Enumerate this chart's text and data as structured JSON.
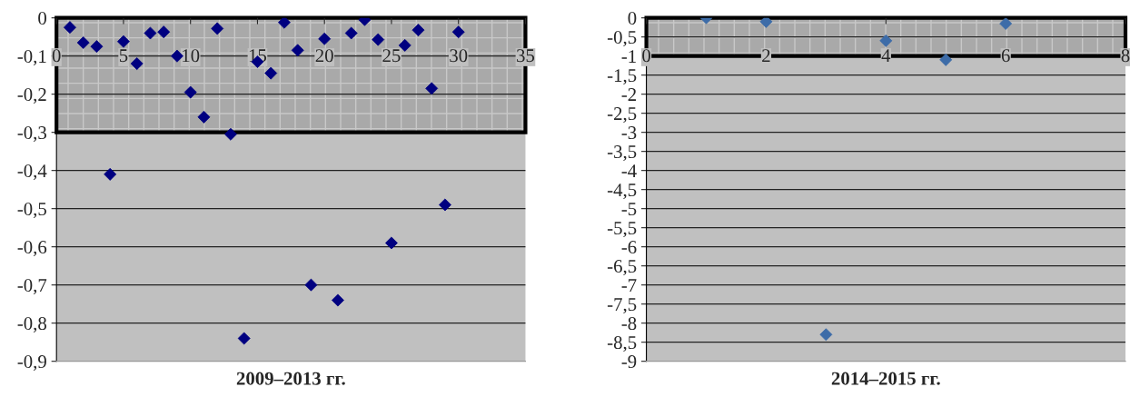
{
  "chart_data": [
    {
      "type": "scatter",
      "title": "2009–2013 гг.",
      "marker": "diamond",
      "grid": "y",
      "x": [
        1,
        2,
        3,
        4,
        5,
        6,
        7,
        8,
        9,
        10,
        11,
        12,
        13,
        14,
        15,
        16,
        17,
        18,
        19,
        20,
        21,
        22,
        23,
        24,
        25,
        26,
        27,
        28,
        29,
        30
      ],
      "series": [
        {
          "color": "#000080",
          "values": [
            -0.025,
            -0.065,
            -0.075,
            -0.41,
            -0.062,
            -0.12,
            -0.04,
            -0.037,
            -0.1,
            -0.195,
            -0.26,
            -0.028,
            -0.305,
            -0.84,
            -0.115,
            -0.145,
            -0.012,
            -0.085,
            -0.7,
            -0.055,
            -0.74,
            -0.04,
            -0.005,
            -0.057,
            -0.59,
            -0.072,
            -0.032,
            -0.185,
            -0.49,
            -0.037
          ]
        }
      ],
      "xlim": [
        0,
        35
      ],
      "xticks": [
        0,
        5,
        10,
        15,
        20,
        25,
        30,
        35
      ],
      "ylim": [
        -0.9,
        0
      ],
      "yticks": [
        0,
        {
          "value": -0.1,
          "label": "-0,1"
        },
        {
          "value": -0.2,
          "label": "-0,2"
        },
        {
          "value": -0.3,
          "label": "-0,3"
        },
        {
          "value": -0.4,
          "label": "-0,4"
        },
        {
          "value": -0.5,
          "label": "-0,5"
        },
        {
          "value": -0.6,
          "label": "-0,6"
        },
        {
          "value": -0.7,
          "label": "-0,7"
        },
        {
          "value": -0.8,
          "label": "-0,8"
        },
        {
          "value": -0.9,
          "label": "-0,9"
        }
      ],
      "bands": [
        {
          "axis": "y",
          "from": 0,
          "to": -0.3,
          "color": "#a9a9a9"
        }
      ]
    },
    {
      "type": "scatter",
      "title": "2014–2015 гг.",
      "marker": "diamond",
      "grid": "y",
      "x": [
        1,
        2,
        3,
        4,
        5,
        6
      ],
      "series": [
        {
          "color": "#3d6ca8",
          "values": [
            0,
            -0.1,
            -8.3,
            -0.6,
            -1.1,
            -0.15
          ]
        }
      ],
      "xlim": [
        0,
        8
      ],
      "xticks": [
        0,
        2,
        4,
        6,
        8
      ],
      "ylim": [
        -9,
        0
      ],
      "yticks": [
        0,
        {
          "value": -0.5,
          "label": "-0,5"
        },
        -1,
        {
          "value": -1.5,
          "label": "-1,5"
        },
        -2,
        {
          "value": -2.5,
          "label": "-2,5"
        },
        -3,
        {
          "value": -3.5,
          "label": "-3,5"
        },
        -4,
        {
          "value": -4.5,
          "label": "-4,5"
        },
        -5,
        {
          "value": -5.5,
          "label": "-5,5"
        },
        -6,
        {
          "value": -6.5,
          "label": "-6,5"
        },
        -7,
        {
          "value": -7.5,
          "label": "-7,5"
        },
        -8,
        {
          "value": -8.5,
          "label": "-8,5"
        },
        -9
      ],
      "bands": [
        {
          "axis": "y",
          "from": 0,
          "to": -1,
          "color": "#a9a9a9"
        }
      ]
    }
  ]
}
